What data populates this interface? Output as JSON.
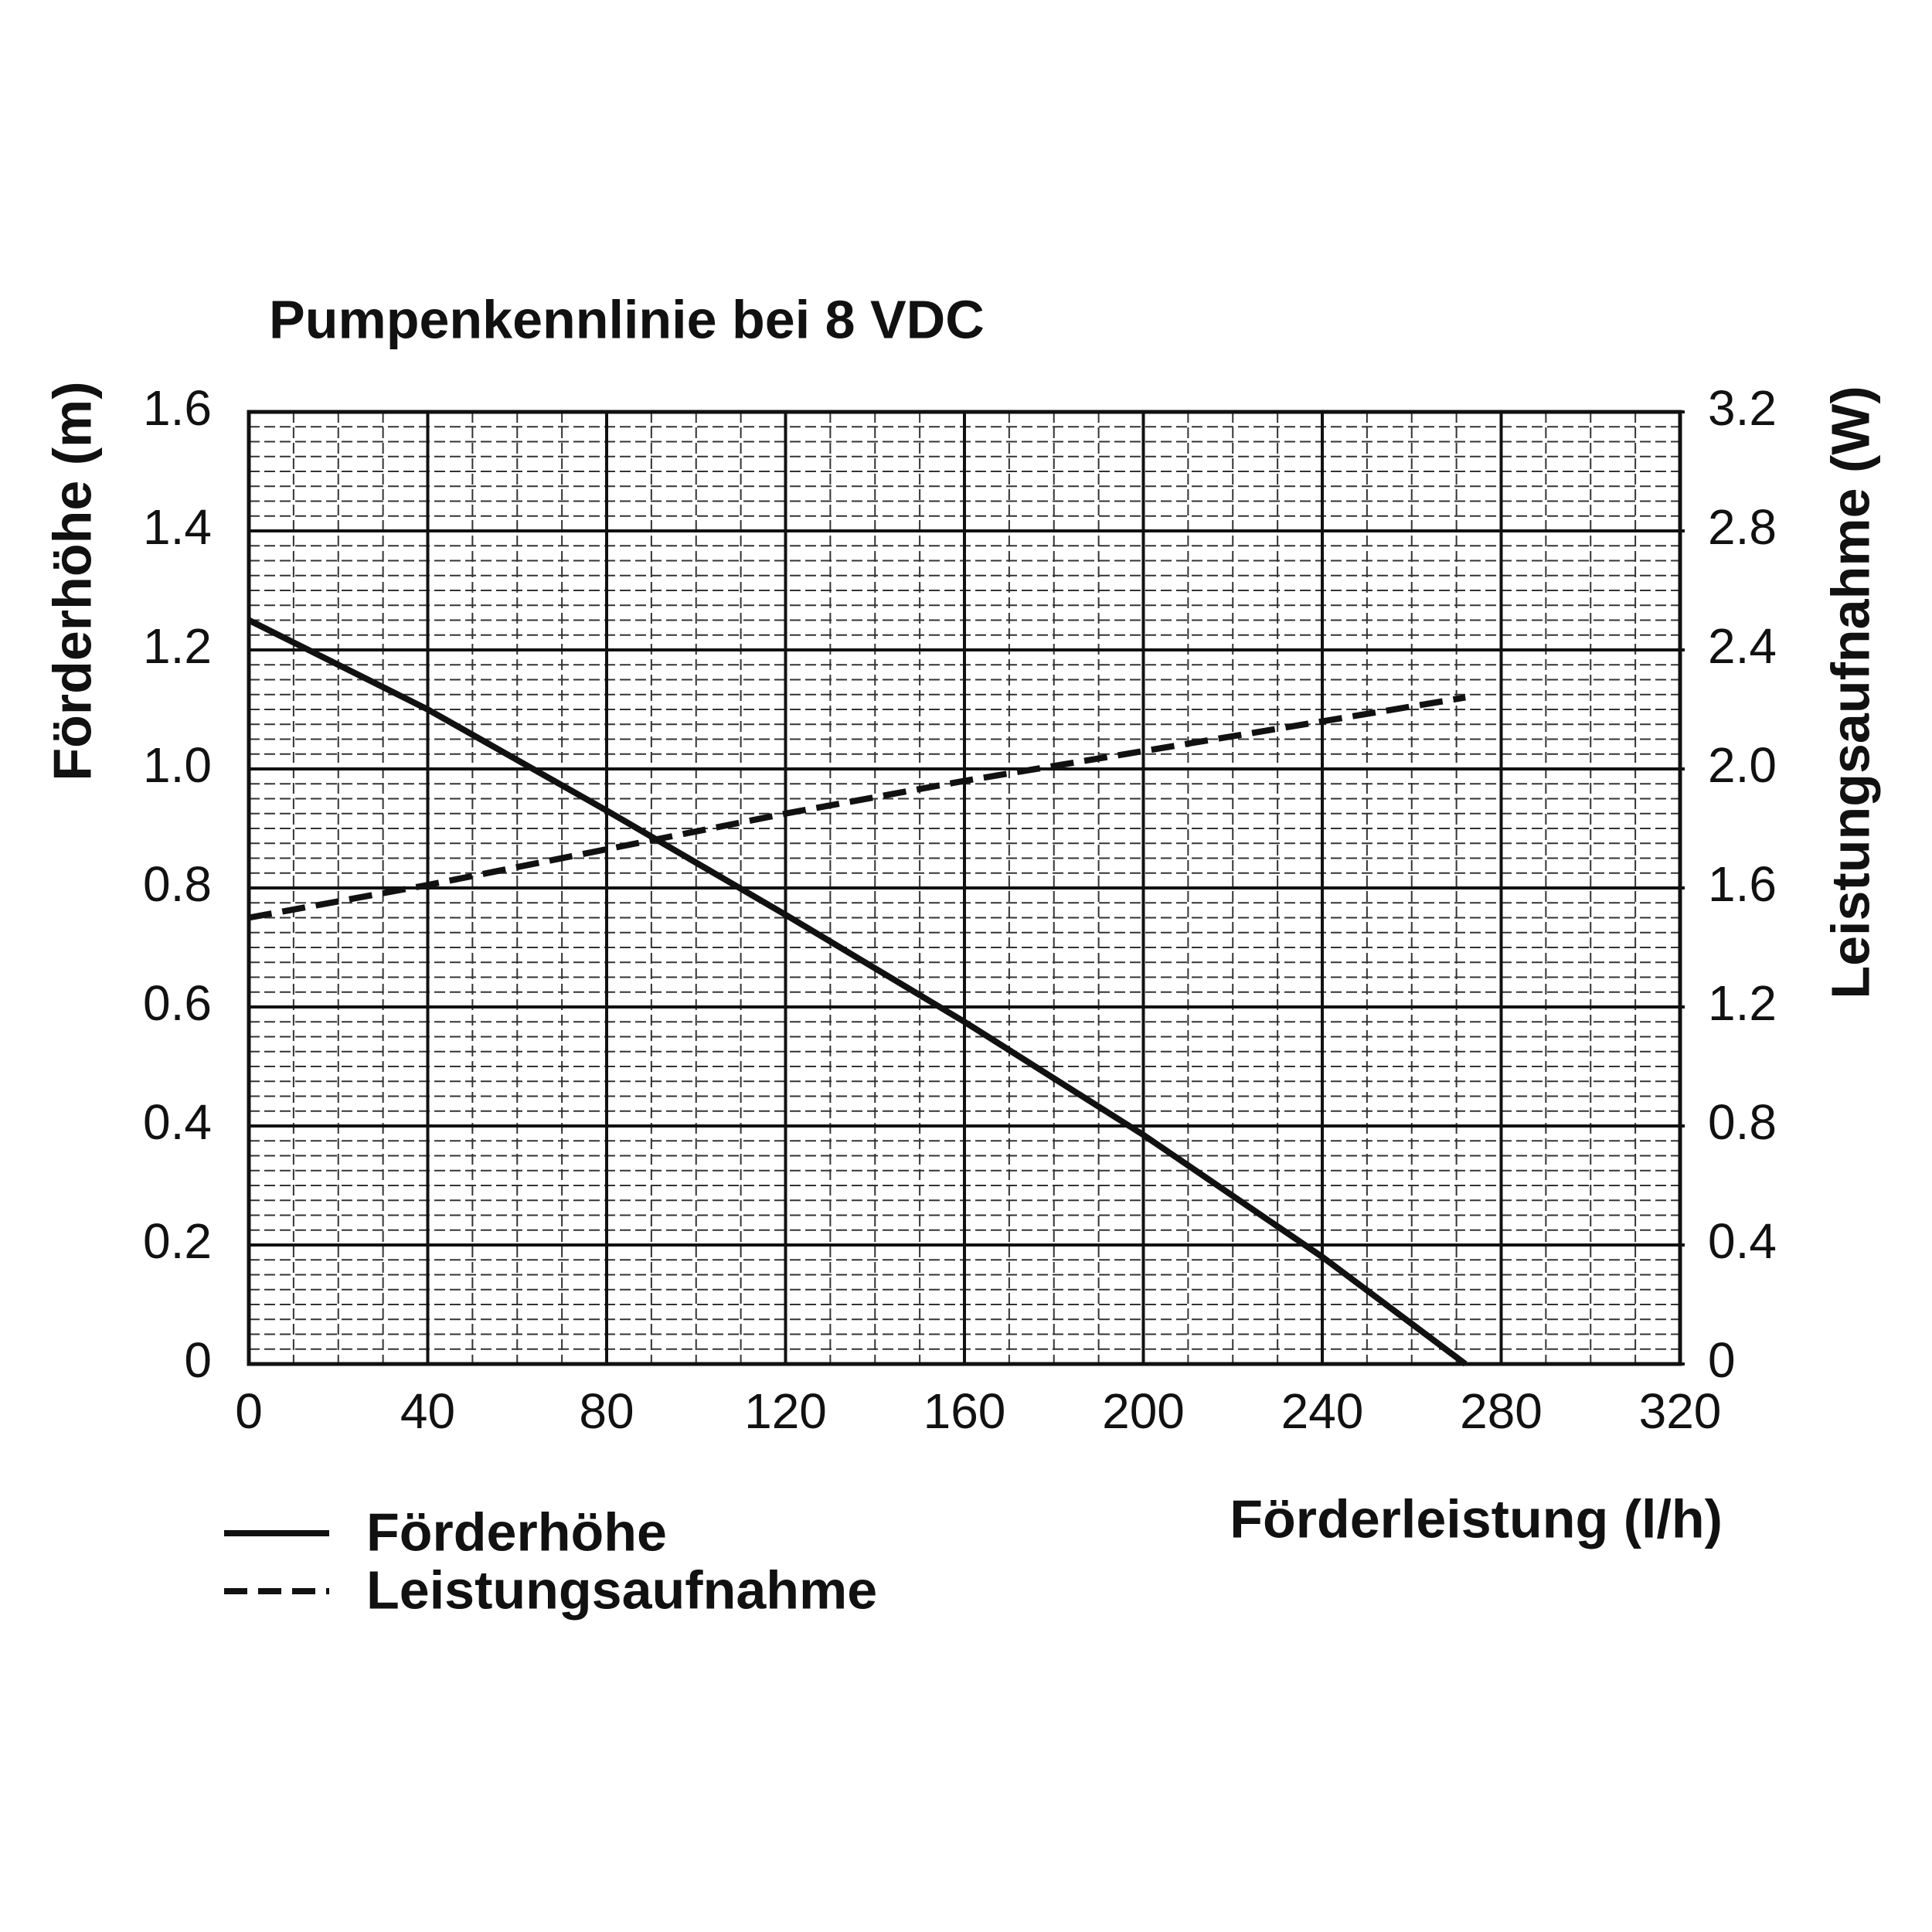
{
  "chart_data": {
    "type": "line",
    "title": "Pumpenkennlinie bei 8 VDC",
    "x_label": "Förderleistung (l/h)",
    "y_label": "Förderhöhe (m)",
    "y2_label": "Leistungsaufnahme (W)",
    "x": [
      0,
      40,
      80,
      120,
      160,
      200,
      240,
      272
    ],
    "series": [
      {
        "name": "Förderhöhe",
        "color": "#111111",
        "dash": false,
        "values": [
          1.25,
          1.1,
          0.93,
          0.755,
          0.575,
          0.385,
          0.18,
          0
        ]
      },
      {
        "name": "Leistungsaufnahme",
        "color": "#111111",
        "dash": true,
        "axis": "y2",
        "values": [
          1.5,
          1.61,
          1.73,
          1.85,
          1.96,
          2.06,
          2.16,
          2.24
        ]
      }
    ],
    "xlim": [
      0,
      320
    ],
    "xticks": [
      0,
      40,
      80,
      120,
      160,
      200,
      240,
      280,
      320
    ],
    "ylim": [
      0,
      1.6
    ],
    "yticks": [
      0,
      0.2,
      0.4,
      0.6,
      0.8,
      {
        "value": 1,
        "label": "1.0"
      },
      1.2,
      1.4,
      1.6
    ],
    "y2lim": [
      0,
      3.2
    ],
    "y2ticks": [
      0,
      0.4,
      0.8,
      1.2,
      1.6,
      {
        "value": 2,
        "label": "2.0"
      },
      2.4,
      2.8,
      3.2
    ],
    "grid": true,
    "minor_grid": true,
    "legend": "bottom-left"
  }
}
